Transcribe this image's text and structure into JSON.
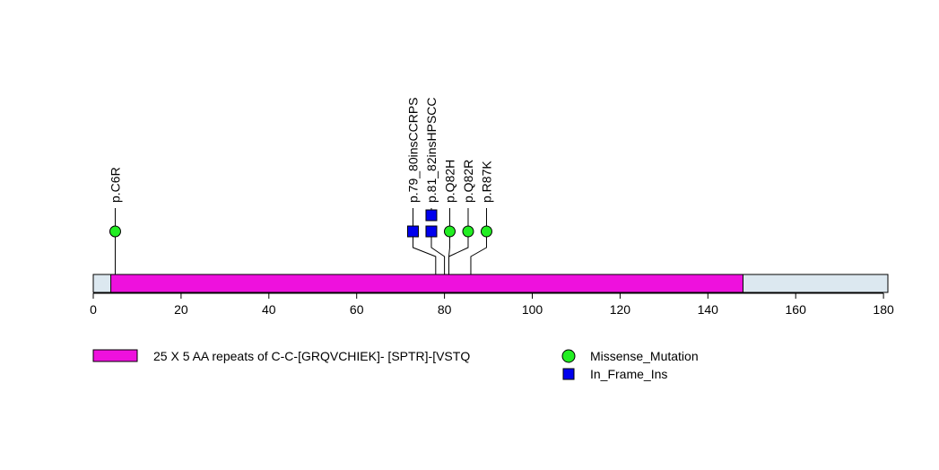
{
  "chart_data": {
    "type": "lollipop",
    "protein_length": 181,
    "x_range": [
      0,
      181
    ],
    "x_ticks": [
      0,
      20,
      40,
      60,
      80,
      100,
      120,
      140,
      160,
      180
    ],
    "domains": [
      {
        "name": "25 X 5 AA repeats of C-C-[GRQVCHIEK]- [SPTR]-[VSTQ",
        "start": 4,
        "end": 148,
        "color": "#ee11dd"
      }
    ],
    "backbone_color": "#dce8f0",
    "mutations": [
      {
        "label": "p.C6R",
        "position": 5,
        "count": 1,
        "type": "Missense_Mutation"
      },
      {
        "label": "p.79_80insCCRPS",
        "position": 78,
        "count": 1,
        "type": "In_Frame_Ins"
      },
      {
        "label": "p.81_82insHPSCC",
        "position": 80,
        "count": 2,
        "type": "In_Frame_Ins"
      },
      {
        "label": "p.Q82H",
        "position": 81,
        "count": 1,
        "type": "Missense_Mutation"
      },
      {
        "label": "p.Q82R",
        "position": 81,
        "count": 1,
        "type": "Missense_Mutation"
      },
      {
        "label": "p.R87K",
        "position": 86,
        "count": 1,
        "type": "Missense_Mutation"
      }
    ],
    "legend": [
      {
        "label": "25 X 5 AA repeats of C-C-[GRQVCHIEK]- [SPTR]-[VSTQ",
        "kind": "domain",
        "color": "#ee11dd"
      },
      {
        "label": "Missense_Mutation",
        "kind": "circle",
        "color": "#22ee22"
      },
      {
        "label": "In_Frame_Ins",
        "kind": "square",
        "color": "#0000ee"
      }
    ]
  }
}
